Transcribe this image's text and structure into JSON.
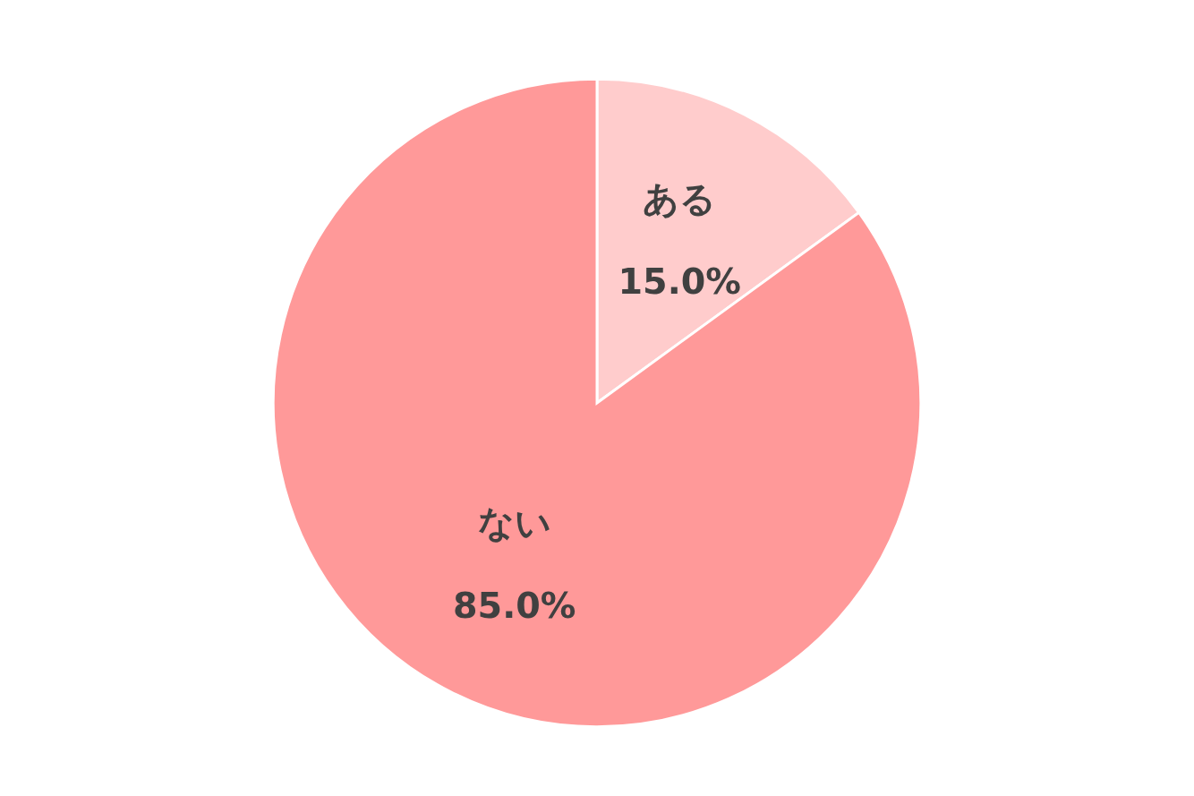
{
  "chart_data": {
    "type": "pie",
    "categories": [
      "ある",
      "ない"
    ],
    "values": [
      15.0,
      85.0
    ],
    "colors": [
      "#ffcccc",
      "#ff9999"
    ],
    "value_labels": [
      "15.0%",
      "85.0%"
    ],
    "legend": false
  }
}
